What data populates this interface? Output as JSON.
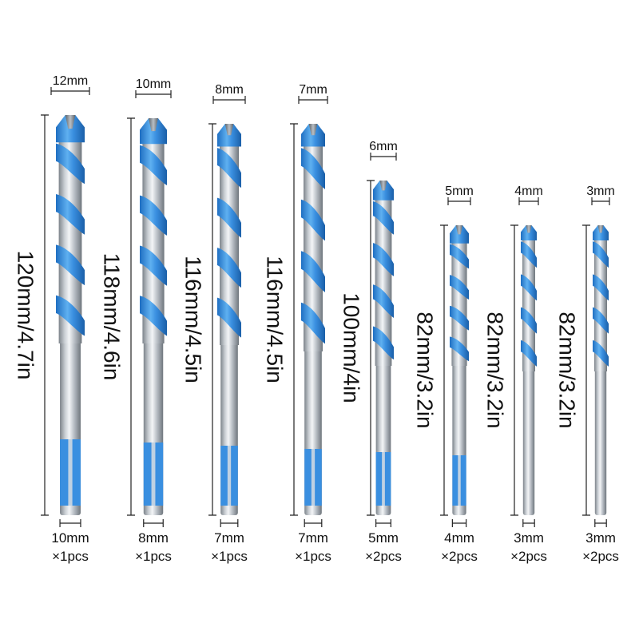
{
  "colors": {
    "shank_light": "#e9ecef",
    "shank_mid": "#b4bac1",
    "shank_dark": "#7d848b",
    "flute_blue": "#3a8fe0",
    "flute_dark": "#1f6fc2",
    "flute_light": "#7cc0f5",
    "tip": "#8f969d",
    "text": "#111111"
  },
  "bits": [
    {
      "head": "12mm",
      "length": "120mm/4.7in",
      "shank": "10mm",
      "qty": "×1pcs"
    },
    {
      "head": "10mm",
      "length": "118mm/4.6in",
      "shank": "8mm",
      "qty": "×1pcs"
    },
    {
      "head": "8mm",
      "length": "116mm/4.5in",
      "shank": "7mm",
      "qty": "×1pcs"
    },
    {
      "head": "7mm",
      "length": "116mm/4.5in",
      "shank": "7mm",
      "qty": "×1pcs"
    },
    {
      "head": "6mm",
      "length": "100mm/4in",
      "shank": "5mm",
      "qty": "×2pcs"
    },
    {
      "head": "5mm",
      "length": "82mm/3.2in",
      "shank": "4mm",
      "qty": "×2pcs"
    },
    {
      "head": "4mm",
      "length": "82mm/3.2in",
      "shank": "3mm",
      "qty": "×2pcs"
    },
    {
      "head": "3mm",
      "length": "82mm/3.2in",
      "shank": "3mm",
      "qty": "×2pcs"
    }
  ]
}
